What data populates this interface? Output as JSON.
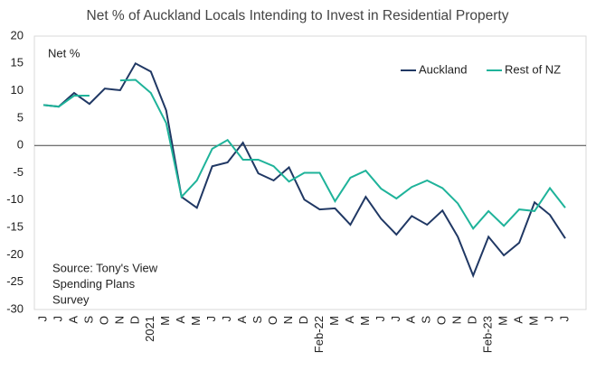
{
  "chart_data": {
    "type": "line",
    "title": "Net % of Auckland Locals Intending to Invest in Residential Property",
    "y_label": "Net %",
    "annotation": [
      "Source: Tony's View",
      "Spending Plans",
      "Survey"
    ],
    "categories": [
      "J",
      "J",
      "A",
      "S",
      "O",
      "N",
      "D",
      "2021",
      "M",
      "A",
      "M",
      "J",
      "J",
      "A",
      "S",
      "O",
      "N",
      "D",
      "Feb-22",
      "M",
      "A",
      "M",
      "J",
      "J",
      "A",
      "S",
      "O",
      "N",
      "D",
      "Feb-23",
      "M",
      "A",
      "M",
      "J",
      "J"
    ],
    "series": [
      {
        "name": "Auckland",
        "color": "#203864",
        "values": [
          7.4,
          7.1,
          9.6,
          7.6,
          10.4,
          10.1,
          15.0,
          13.5,
          6.4,
          -9.4,
          -11.4,
          -3.8,
          -3.1,
          0.5,
          -5.1,
          -6.4,
          -4.0,
          -9.9,
          -11.7,
          -11.5,
          -14.5,
          -9.4,
          -13.4,
          -16.3,
          -12.9,
          -14.5,
          -11.9,
          -16.7,
          -23.8,
          -16.7,
          -20.1,
          -17.8,
          -10.4,
          -12.7,
          -17.0
        ]
      },
      {
        "name": "Rest of NZ",
        "color": "#1fb39a",
        "values": [
          7.4,
          7.1,
          9.1,
          9.1,
          null,
          11.9,
          12.0,
          9.6,
          4.1,
          -9.4,
          -6.4,
          -0.6,
          1.0,
          -2.6,
          -2.6,
          -3.8,
          -6.6,
          -5.0,
          -5.0,
          -10.2,
          -5.9,
          -4.6,
          -7.9,
          -9.7,
          -7.6,
          -6.4,
          -7.8,
          -10.6,
          -15.2,
          -12.0,
          -14.7,
          -11.7,
          -12.0,
          -7.8,
          -11.4
        ]
      }
    ],
    "ylim": [
      -30,
      20
    ],
    "yticks": [
      -30,
      -25,
      -20,
      -15,
      -10,
      -5,
      0,
      5,
      10,
      15,
      20
    ],
    "legend": "top-right"
  }
}
